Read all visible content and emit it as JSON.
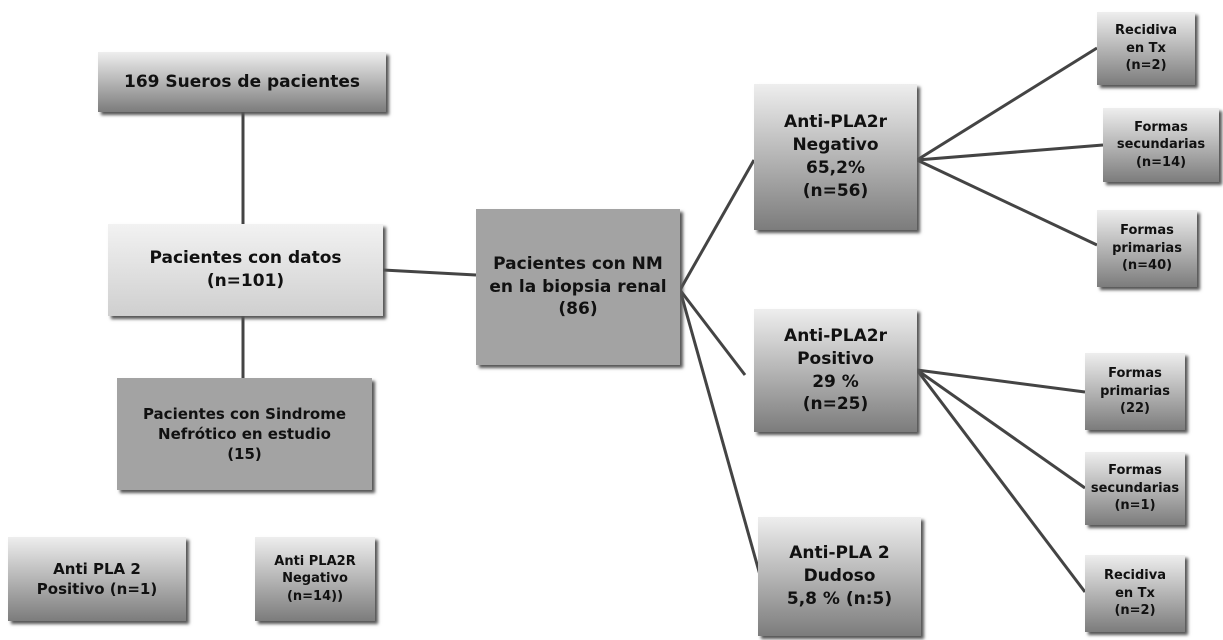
{
  "nodes": [
    {
      "lines": [
        "169 Sueros de pacientes"
      ]
    },
    {
      "lines": [
        "Pacientes con datos",
        "(n=101)"
      ]
    },
    {
      "lines": [
        "Pacientes con Sindrome",
        "Nefrótico en estudio",
        "(15)"
      ]
    },
    {
      "lines": [
        "Anti PLA 2",
        "Positivo (n=1)"
      ]
    },
    {
      "lines": [
        "Anti PLA2R",
        "Negativo",
        "(n=14))"
      ]
    },
    {
      "lines": [
        "Pacientes con NM",
        "en la biopsia renal",
        "(86)"
      ]
    },
    {
      "lines": [
        "Anti-PLA2r",
        "Negativo",
        "65,2%",
        "(n=56)"
      ]
    },
    {
      "lines": [
        "Anti-PLA2r",
        "Positivo",
        "29 %",
        "(n=25)"
      ]
    },
    {
      "lines": [
        "Anti-PLA 2",
        "Dudoso",
        "5,8 % (n:5)"
      ]
    },
    {
      "lines": [
        "Recidiva",
        "en Tx",
        "(n=2)"
      ]
    },
    {
      "lines": [
        "Formas",
        "secundarias",
        "(n=14)"
      ]
    },
    {
      "lines": [
        "Formas",
        "primarias",
        "(n=40)"
      ]
    },
    {
      "lines": [
        "Formas",
        "primarias",
        "(22)"
      ]
    },
    {
      "lines": [
        "Formas",
        "secundarias",
        "(n=1)"
      ]
    },
    {
      "lines": [
        "Recidiva",
        "en Tx",
        "(n=2)"
      ]
    }
  ]
}
